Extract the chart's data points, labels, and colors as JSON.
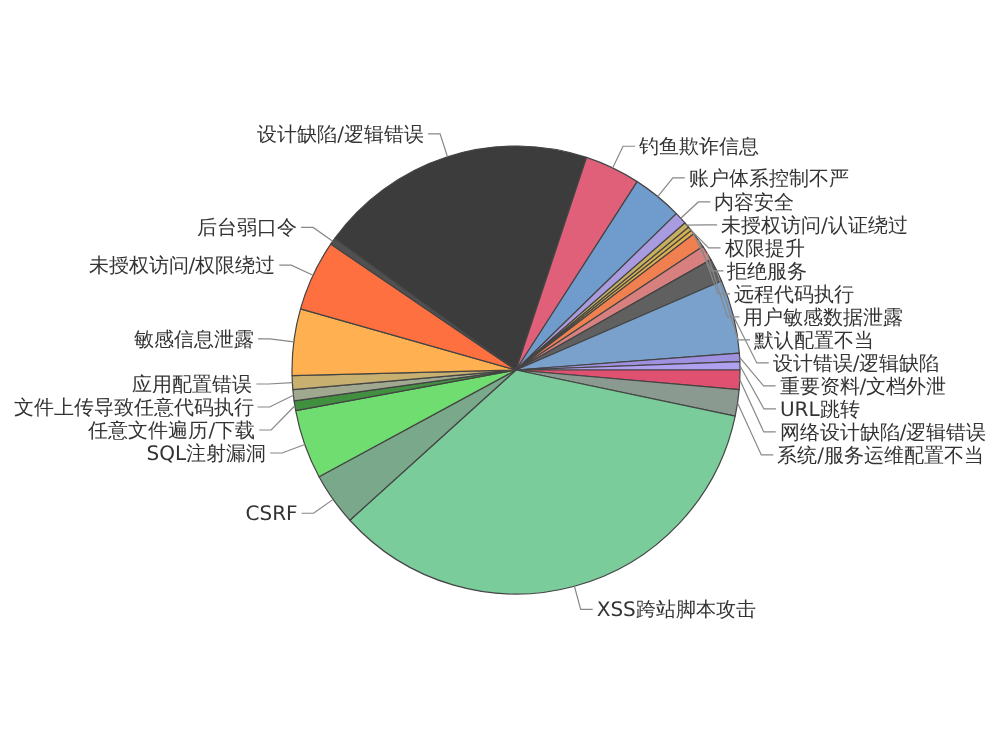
{
  "chart_data": {
    "type": "pie",
    "categories": [
      "设计缺陷/逻辑错误",
      "钓鱼欺诈信息",
      "账户体系控制不严",
      "内容安全",
      "未授权访问/认证绕过",
      "权限提升",
      "拒绝服务",
      "远程代码执行",
      "用户敏感数据泄露",
      "默认配置不当",
      "设计错误/逻辑缺陷",
      "重要资料/文档外泄",
      "URL跳转",
      "网络设计缺陷/逻辑错误",
      "系统/服务运维配置不当",
      "XSS跨站脚本攻击",
      "CSRF",
      "SQL注射漏洞",
      "任意文件遍历/下载",
      "文件上传导致任意代码执行",
      "应用配置错误",
      "敏感信息泄露",
      "未授权访问/权限绕过",
      "后台弱口令"
    ],
    "values": [
      20.1,
      4.0,
      3.6,
      0.9,
      0.4,
      0.3,
      0.3,
      1.1,
      1.1,
      1.7,
      5.3,
      0.6,
      0.6,
      1.4,
      1.9,
      35.0,
      3.8,
      5.0,
      0.7,
      0.8,
      1.0,
      4.8,
      5.1,
      0.5
    ],
    "colors": [
      "#3c3c3c",
      "#e0607a",
      "#6f9ccc",
      "#a99be0",
      "#c8b060",
      "#d4b050",
      "#e0b050",
      "#f08050",
      "#d88080",
      "#606060",
      "#7aa0cc",
      "#a090e0",
      "#b0a0f0",
      "#e05070",
      "#8a9a90",
      "#7acc9a",
      "#7aa88a",
      "#70dd70",
      "#409040",
      "#a0a890",
      "#c8b070",
      "#ffb050",
      "#ff7040",
      "#505050"
    ]
  }
}
